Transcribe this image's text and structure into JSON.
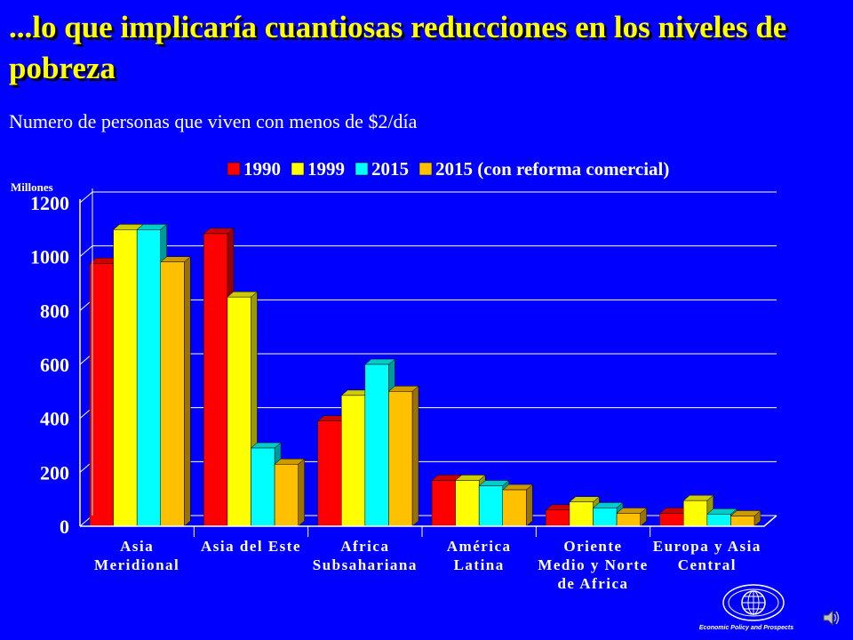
{
  "title": "...lo que implicaría cuantiosas reducciones en los niveles de pobreza",
  "subtitle": "Numero de personas que viven con menos de $2/día",
  "chart_data": {
    "type": "bar",
    "ylabel": "Millones",
    "ylim": [
      0,
      1200
    ],
    "yticks": [
      0,
      200,
      400,
      600,
      800,
      1000,
      1200
    ],
    "grid": true,
    "legend_position": "top",
    "categories": [
      [
        "Asia",
        "Meridional"
      ],
      [
        "Asia del Este"
      ],
      [
        "Africa",
        "Subsahariana"
      ],
      [
        "América",
        "Latina"
      ],
      [
        "Oriente",
        "Medio y Norte",
        "de Africa"
      ],
      [
        "Europa y Asia",
        "Central"
      ]
    ],
    "series": [
      {
        "name": "1990",
        "color": "#ff0000",
        "values": [
          975,
          1085,
          390,
          170,
          60,
          48
        ]
      },
      {
        "name": "1999",
        "color": "#ffff00",
        "values": [
          1100,
          850,
          485,
          170,
          90,
          95
        ]
      },
      {
        "name": "2015",
        "color": "#00ffff",
        "values": [
          1100,
          290,
          600,
          150,
          68,
          45
        ]
      },
      {
        "name": "2015 (con reforma comercial)",
        "color": "#ffc000",
        "values": [
          980,
          230,
          500,
          135,
          48,
          38
        ]
      }
    ]
  },
  "footer": {
    "logo_caption": "Economic Policy and Prospects",
    "logo_icon": "globe-icon",
    "speaker_icon": "speaker-icon"
  }
}
